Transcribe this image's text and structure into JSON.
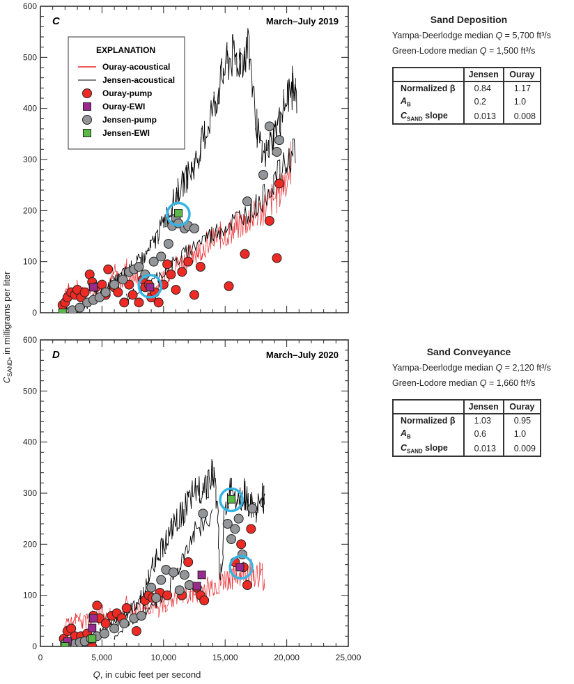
{
  "chart_data": [
    {
      "id": "C",
      "type": "scatter",
      "panel_letter": "C",
      "title": "March–July 2019",
      "xlabel": "Q, in cubic feet per second",
      "ylabel": "C_SAND, in milligrams per liter",
      "xlim": [
        0,
        25000
      ],
      "ylim": [
        0,
        600
      ],
      "xticks": [
        "0",
        "5,000",
        "10,000",
        "15,000",
        "20,000",
        "25,000"
      ],
      "yticks": [
        "0",
        "100",
        "200",
        "300",
        "400",
        "500",
        "600"
      ],
      "legend": {
        "title": "EXPLANATION",
        "position": "top-left",
        "entries": [
          {
            "label": "Ouray-acoustical",
            "kind": "line",
            "color": "#e8262a"
          },
          {
            "label": "Jensen-acoustical",
            "kind": "line",
            "color": "#000000"
          },
          {
            "label": "Ouray-pump",
            "kind": "circle",
            "color": "#ee2a24"
          },
          {
            "label": "Ouray-EWI",
            "kind": "square",
            "color": "#9b2a8f"
          },
          {
            "label": "Jensen-pump",
            "kind": "circle",
            "color": "#939598"
          },
          {
            "label": "Jensen-EWI",
            "kind": "square",
            "color": "#5bb947"
          }
        ]
      },
      "series": [
        {
          "name": "Ouray-acoustical",
          "kind": "line",
          "color": "#e8262a",
          "x": [
            1800,
            2200,
            2600,
            3000,
            3500,
            4000,
            4500,
            5000,
            5500,
            6000,
            6500,
            7000,
            7500,
            8000,
            8500,
            9000,
            9500,
            10000,
            10500,
            11000,
            11500,
            12000,
            12500,
            13000,
            13500,
            14000,
            14500,
            15000,
            15500,
            16000,
            16500,
            17000,
            17500,
            18000,
            18500,
            19000,
            19500,
            20000,
            20400
          ],
          "y": [
            30,
            45,
            40,
            50,
            35,
            55,
            40,
            60,
            45,
            80,
            55,
            90,
            65,
            70,
            55,
            40,
            50,
            70,
            80,
            95,
            100,
            110,
            120,
            125,
            135,
            140,
            150,
            155,
            160,
            170,
            175,
            185,
            190,
            200,
            215,
            225,
            240,
            270,
            300
          ]
        },
        {
          "name": "Jensen-acoustical",
          "kind": "line",
          "color": "#000000",
          "x": [
            1800,
            2500,
            3000,
            3500,
            4000,
            4500,
            5000,
            5500,
            6000,
            6500,
            7000,
            7500,
            8000,
            8500,
            9000,
            9500,
            10000,
            10500,
            11000,
            11500,
            12000,
            12500,
            13000,
            13500,
            14000,
            14500,
            15000,
            15500,
            16000,
            16500,
            17000,
            17500,
            18000,
            18500,
            19000,
            19500,
            20000,
            20500,
            20800
          ],
          "y": [
            10,
            5,
            8,
            12,
            20,
            30,
            40,
            50,
            60,
            70,
            80,
            90,
            100,
            110,
            130,
            150,
            180,
            200,
            230,
            250,
            270,
            290,
            320,
            360,
            400,
            440,
            480,
            500,
            495,
            505,
            510,
            380,
            300,
            320,
            350,
            380,
            420,
            440,
            420
          ]
        },
        {
          "name": "Jensen-acoustical-lower",
          "kind": "line",
          "color": "#000000",
          "x": [
            7000,
            8000,
            9000,
            10000,
            11000,
            12000,
            13000,
            14000,
            15000,
            16000,
            17000,
            18000,
            19000,
            20000,
            20800
          ],
          "y": [
            30,
            45,
            60,
            80,
            100,
            120,
            140,
            155,
            170,
            185,
            200,
            220,
            260,
            290,
            330
          ]
        },
        {
          "name": "Ouray-pump",
          "kind": "circle",
          "color": "#ee2a24",
          "x": [
            1800,
            2000,
            2200,
            2500,
            2800,
            3000,
            3300,
            3600,
            4000,
            4200,
            4500,
            5000,
            5300,
            5500,
            6000,
            6300,
            6800,
            7200,
            7500,
            8000,
            8300,
            8500,
            8800,
            9000,
            9300,
            9600,
            10000,
            10300,
            10600,
            11000,
            11500,
            12000,
            12500,
            13000,
            15300,
            16600,
            18600,
            19200,
            19400
          ],
          "y": [
            15,
            20,
            30,
            40,
            35,
            45,
            30,
            40,
            75,
            60,
            50,
            55,
            35,
            85,
            50,
            40,
            20,
            55,
            35,
            20,
            65,
            50,
            55,
            30,
            40,
            20,
            55,
            95,
            75,
            45,
            80,
            100,
            35,
            90,
            52,
            115,
            180,
            107,
            253
          ]
        },
        {
          "name": "Ouray-EWI",
          "kind": "square",
          "color": "#9b2a8f",
          "x": [
            4300,
            8900
          ],
          "y": [
            50,
            50
          ]
        },
        {
          "name": "Jensen-pump",
          "kind": "circle",
          "color": "#939598",
          "x": [
            2600,
            3200,
            3800,
            4300,
            4800,
            5300,
            6000,
            6700,
            7200,
            7600,
            8000,
            8500,
            9200,
            9800,
            10400,
            10700,
            11000,
            11200,
            11700,
            12000,
            12500,
            16800,
            18100,
            18600,
            19200,
            19400
          ],
          "y": [
            5,
            10,
            20,
            25,
            30,
            40,
            55,
            65,
            80,
            85,
            90,
            75,
            100,
            110,
            135,
            170,
            185,
            175,
            165,
            170,
            165,
            218,
            270,
            365,
            315,
            338
          ]
        },
        {
          "name": "Jensen-EWI",
          "kind": "square",
          "color": "#5bb947",
          "x": [
            1800,
            11200
          ],
          "y": [
            0,
            195
          ]
        }
      ],
      "highlights": [
        {
          "x": 8900,
          "y": 52,
          "color": "#35b5e5"
        },
        {
          "x": 11200,
          "y": 193,
          "color": "#35b5e5"
        }
      ],
      "side_info": {
        "title": "Sand Deposition",
        "yampa_line": "Yampa-Deerlodge median Q = 5,700 ft³/s",
        "green_line": "Green-Lodore median Q = 1,500 ft³/s",
        "table": {
          "headers": [
            "",
            "Jensen",
            "Ouray"
          ],
          "rows": [
            [
              "Normalized β",
              "0.84",
              "1.17"
            ],
            [
              "A_B",
              "0.2",
              "1.0"
            ],
            [
              "C_SAND slope",
              "0.013",
              "0.008"
            ]
          ]
        }
      }
    },
    {
      "id": "D",
      "type": "scatter",
      "panel_letter": "D",
      "title": "March–July 2020",
      "xlabel": "Q, in cubic feet per second",
      "ylabel": "C_SAND, in milligrams per liter",
      "xlim": [
        0,
        25000
      ],
      "ylim": [
        0,
        600
      ],
      "xticks": [
        "0",
        "5,000",
        "10,000",
        "15,000",
        "20,000",
        "25,000"
      ],
      "yticks": [
        "0",
        "100",
        "200",
        "300",
        "400",
        "500",
        "600"
      ],
      "series": [
        {
          "name": "Ouray-acoustical",
          "kind": "line",
          "color": "#e8262a",
          "x": [
            1800,
            2200,
            2600,
            3000,
            3500,
            4000,
            4500,
            5000,
            5500,
            6000,
            6500,
            7000,
            7500,
            8000,
            8500,
            9000,
            9500,
            10000,
            10500,
            11000,
            11500,
            12000,
            12500,
            13000,
            13500,
            14000,
            14500,
            15000,
            15500,
            16000,
            16500,
            17000,
            17500,
            18000,
            18200
          ],
          "y": [
            20,
            50,
            40,
            55,
            45,
            60,
            50,
            70,
            55,
            65,
            60,
            80,
            65,
            70,
            75,
            80,
            70,
            85,
            90,
            95,
            100,
            105,
            100,
            110,
            115,
            120,
            120,
            130,
            135,
            140,
            145,
            150,
            140,
            145,
            120
          ]
        },
        {
          "name": "Jensen-acoustical",
          "kind": "line",
          "color": "#000000",
          "x": [
            1800,
            2500,
            3000,
            3500,
            4000,
            4500,
            5000,
            5500,
            6000,
            6500,
            7000,
            7500,
            8000,
            8500,
            9000,
            9500,
            10000,
            10500,
            11000,
            11500,
            12000,
            12500,
            13000,
            13500,
            14000,
            14300,
            14600,
            15000,
            15500,
            16000,
            16500,
            17000,
            17500,
            18000,
            18200
          ],
          "y": [
            5,
            5,
            8,
            10,
            15,
            20,
            30,
            35,
            45,
            55,
            65,
            75,
            90,
            110,
            150,
            180,
            200,
            220,
            240,
            260,
            280,
            300,
            310,
            320,
            340,
            300,
            120,
            260,
            320,
            290,
            300,
            280,
            260,
            300,
            270
          ]
        },
        {
          "name": "Jensen-acoustical-lower",
          "kind": "line",
          "color": "#000000",
          "x": [
            6000,
            7000,
            8000,
            9000,
            10000,
            11000,
            12000,
            13000,
            14000
          ],
          "y": [
            20,
            40,
            60,
            80,
            100,
            140,
            200,
            240,
            250
          ]
        },
        {
          "name": "Ouray-pump",
          "kind": "circle",
          "color": "#ee2a24",
          "x": [
            1900,
            2200,
            2500,
            2800,
            3300,
            3800,
            4200,
            4300,
            4600,
            4800,
            5300,
            5800,
            6200,
            6600,
            7000,
            7800,
            8500,
            8800,
            9100,
            9700,
            10300,
            11500,
            12000,
            12700,
            13000,
            13300,
            15800,
            16300,
            16500,
            16800,
            17100
          ],
          "y": [
            15,
            30,
            35,
            20,
            20,
            25,
            0,
            60,
            80,
            55,
            45,
            60,
            65,
            55,
            75,
            30,
            90,
            100,
            95,
            105,
            100,
            100,
            165,
            115,
            100,
            90,
            165,
            200,
            155,
            120,
            230
          ]
        },
        {
          "name": "Ouray-EWI",
          "kind": "square",
          "color": "#9b2a8f",
          "x": [
            2200,
            4200,
            4300,
            12700,
            13100,
            16200
          ],
          "y": [
            10,
            36,
            55,
            118,
            140,
            155
          ]
        },
        {
          "name": "Jensen-pump",
          "kind": "circle",
          "color": "#939598",
          "x": [
            2000,
            2400,
            2800,
            3200,
            3600,
            4100,
            4600,
            5200,
            6000,
            6800,
            7600,
            8200,
            9000,
            9400,
            9800,
            10200,
            10800,
            11300,
            11700,
            12100,
            13200,
            15200,
            15500,
            15800,
            16100,
            16400,
            17200
          ],
          "y": [
            5,
            3,
            5,
            8,
            10,
            15,
            20,
            25,
            35,
            45,
            55,
            60,
            115,
            95,
            130,
            150,
            145,
            110,
            140,
            120,
            260,
            240,
            210,
            230,
            250,
            180,
            270
          ]
        },
        {
          "name": "Jensen-EWI",
          "kind": "square",
          "color": "#5bb947",
          "x": [
            2000,
            4200,
            15500
          ],
          "y": [
            0,
            15,
            288
          ]
        }
      ],
      "highlights": [
        {
          "x": 15500,
          "y": 287,
          "color": "#35b5e5"
        },
        {
          "x": 16300,
          "y": 155,
          "color": "#35b5e5"
        }
      ],
      "side_info": {
        "title": "Sand Conveyance",
        "yampa_line": "Yampa-Deerlodge median Q = 2,120 ft³/s",
        "green_line": "Green-Lodore median Q = 1,660 ft³/s",
        "table": {
          "headers": [
            "",
            "Jensen",
            "Ouray"
          ],
          "rows": [
            [
              "Normalized β",
              "1.03",
              "0.95"
            ],
            [
              "A_B",
              "0.6",
              "1.0"
            ],
            [
              "C_SAND slope",
              "0.013",
              "0.009"
            ]
          ]
        }
      }
    }
  ],
  "labels": {
    "y_axis_main": "C",
    "y_axis_sub": "SAND",
    "y_axis_rest": ", in milligrams per liter",
    "x_axis_q": "Q",
    "x_axis_rest": ", in cubic feet per second"
  },
  "side": {
    "deposition": {
      "title": "Sand Deposition",
      "yampa_prefix": "Yampa-Deerlodge median ",
      "yampa_value": " = 5,700 ft³/s",
      "green_prefix": "Green-Lodore median ",
      "green_value": " = 1,500 ft³/s",
      "q": "Q",
      "col_jensen": "Jensen",
      "col_ouray": "Ouray",
      "row1_label": "Normalized β",
      "row1_jensen": "0.84",
      "row1_ouray": "1.17",
      "row2_label_main": "A",
      "row2_label_sub": "B",
      "row2_jensen": "0.2",
      "row2_ouray": "1.0",
      "row3_label_main": "C",
      "row3_label_sub": "SAND",
      "row3_label_rest": " slope",
      "row3_jensen": "0.013",
      "row3_ouray": "0.008"
    },
    "conveyance": {
      "title": "Sand Conveyance",
      "yampa_prefix": "Yampa-Deerlodge median ",
      "yampa_value": " = 2,120 ft³/s",
      "green_prefix": "Green-Lodore median ",
      "green_value": " = 1,660 ft³/s",
      "q": "Q",
      "col_jensen": "Jensen",
      "col_ouray": "Ouray",
      "row1_label": "Normalized β",
      "row1_jensen": "1.03",
      "row1_ouray": "0.95",
      "row2_label_main": "A",
      "row2_label_sub": "B",
      "row2_jensen": "0.6",
      "row2_ouray": "1.0",
      "row3_label_main": "C",
      "row3_label_sub": "SAND",
      "row3_label_rest": " slope",
      "row3_jensen": "0.013",
      "row3_ouray": "0.009"
    }
  }
}
